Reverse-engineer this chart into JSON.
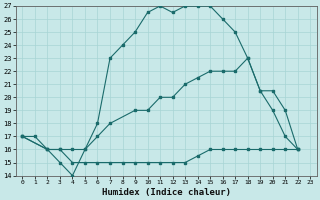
{
  "title": "",
  "xlabel": "Humidex (Indice chaleur)",
  "bg_color": "#c8e8e8",
  "line_color": "#1a6b6b",
  "grid_color": "#a8d5d5",
  "xlim": [
    -0.5,
    23.5
  ],
  "ylim": [
    14,
    27
  ],
  "xticks": [
    0,
    1,
    2,
    3,
    4,
    5,
    6,
    7,
    8,
    9,
    10,
    11,
    12,
    13,
    14,
    15,
    16,
    17,
    18,
    19,
    20,
    21,
    22,
    23
  ],
  "yticks": [
    14,
    15,
    16,
    17,
    18,
    19,
    20,
    21,
    22,
    23,
    24,
    25,
    26,
    27
  ],
  "line1_x": [
    0,
    1,
    2,
    3,
    4,
    5,
    6,
    7,
    8,
    9,
    10,
    11,
    12,
    13,
    14,
    15,
    16,
    17,
    18,
    19,
    20,
    21,
    22
  ],
  "line1_y": [
    17,
    17,
    16,
    15,
    14,
    16,
    18,
    23,
    24,
    25,
    26.5,
    27,
    26.5,
    27,
    27,
    27,
    26,
    25,
    23,
    20.5,
    19,
    17,
    16
  ],
  "line2_x": [
    0,
    2,
    3,
    4,
    5,
    6,
    7,
    9,
    10,
    11,
    12,
    13,
    14,
    15,
    16,
    17,
    18,
    19,
    20,
    21,
    22
  ],
  "line2_y": [
    17,
    16,
    16,
    16,
    16,
    17,
    18,
    19,
    19,
    20,
    20,
    21,
    21.5,
    22,
    22,
    22,
    23,
    20.5,
    20.5,
    19,
    16
  ],
  "line3_x": [
    0,
    2,
    3,
    4,
    5,
    6,
    7,
    8,
    9,
    10,
    11,
    12,
    13,
    14,
    15,
    16,
    17,
    18,
    19,
    20,
    21,
    22
  ],
  "line3_y": [
    17,
    16,
    16,
    15,
    15,
    15,
    15,
    15,
    15,
    15,
    15,
    15,
    15,
    15.5,
    16,
    16,
    16,
    16,
    16,
    16,
    16,
    16
  ]
}
